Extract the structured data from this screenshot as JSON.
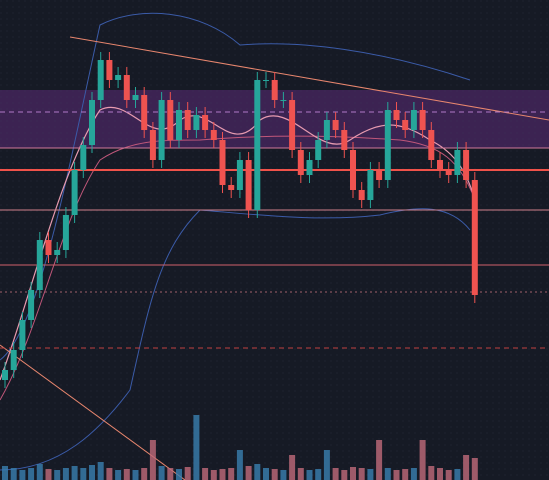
{
  "chart_data": {
    "type": "candlestick",
    "ylim": [
      0,
      480
    ],
    "up_color": "#26a69a",
    "down_color": "#ef5350",
    "open": [
      100,
      110,
      130,
      160,
      190,
      240,
      225,
      230,
      265,
      310,
      335,
      380,
      420,
      400,
      405,
      380,
      385,
      350,
      320,
      380,
      340,
      370,
      350,
      365,
      350,
      340,
      295,
      290,
      320,
      270,
      400,
      400,
      380,
      380,
      330,
      305,
      320,
      340,
      360,
      350,
      330,
      290,
      280,
      310,
      300,
      370,
      360,
      350,
      370,
      350,
      320,
      310,
      305,
      330,
      300
    ],
    "high": [
      118,
      138,
      168,
      198,
      248,
      248,
      238,
      273,
      318,
      343,
      388,
      428,
      428,
      413,
      413,
      393,
      393,
      358,
      388,
      388,
      378,
      378,
      373,
      373,
      358,
      348,
      303,
      328,
      328,
      408,
      408,
      408,
      388,
      388,
      338,
      328,
      348,
      368,
      368,
      358,
      338,
      298,
      318,
      318,
      378,
      378,
      368,
      378,
      378,
      358,
      328,
      318,
      338,
      338,
      308
    ],
    "low": [
      92,
      102,
      122,
      152,
      182,
      217,
      217,
      222,
      257,
      302,
      327,
      372,
      392,
      392,
      372,
      372,
      342,
      312,
      312,
      332,
      332,
      342,
      342,
      342,
      332,
      287,
      282,
      282,
      262,
      262,
      392,
      372,
      372,
      322,
      297,
      297,
      312,
      332,
      342,
      322,
      282,
      272,
      272,
      292,
      292,
      352,
      342,
      342,
      342,
      312,
      302,
      297,
      297,
      292,
      177
    ],
    "close": [
      110,
      130,
      160,
      190,
      240,
      225,
      230,
      265,
      310,
      335,
      380,
      420,
      400,
      405,
      380,
      385,
      350,
      320,
      380,
      340,
      370,
      350,
      365,
      350,
      340,
      295,
      290,
      320,
      270,
      400,
      400,
      380,
      380,
      330,
      305,
      320,
      340,
      360,
      350,
      330,
      290,
      280,
      310,
      300,
      370,
      360,
      350,
      370,
      350,
      320,
      310,
      305,
      330,
      300,
      185
    ],
    "volume": [
      14,
      12,
      10,
      12,
      16,
      11,
      10,
      12,
      14,
      12,
      15,
      18,
      12,
      10,
      11,
      10,
      12,
      40,
      14,
      12,
      11,
      13,
      65,
      12,
      10,
      11,
      12,
      30,
      14,
      16,
      12,
      11,
      10,
      25,
      12,
      10,
      11,
      30,
      12,
      10,
      13,
      12,
      11,
      40,
      12,
      10,
      11,
      12,
      40,
      14,
      12,
      10,
      11,
      25,
      22
    ],
    "levels": [
      368,
      332,
      310,
      270,
      215,
      188,
      132
    ],
    "zone": [
      332,
      390
    ]
  }
}
